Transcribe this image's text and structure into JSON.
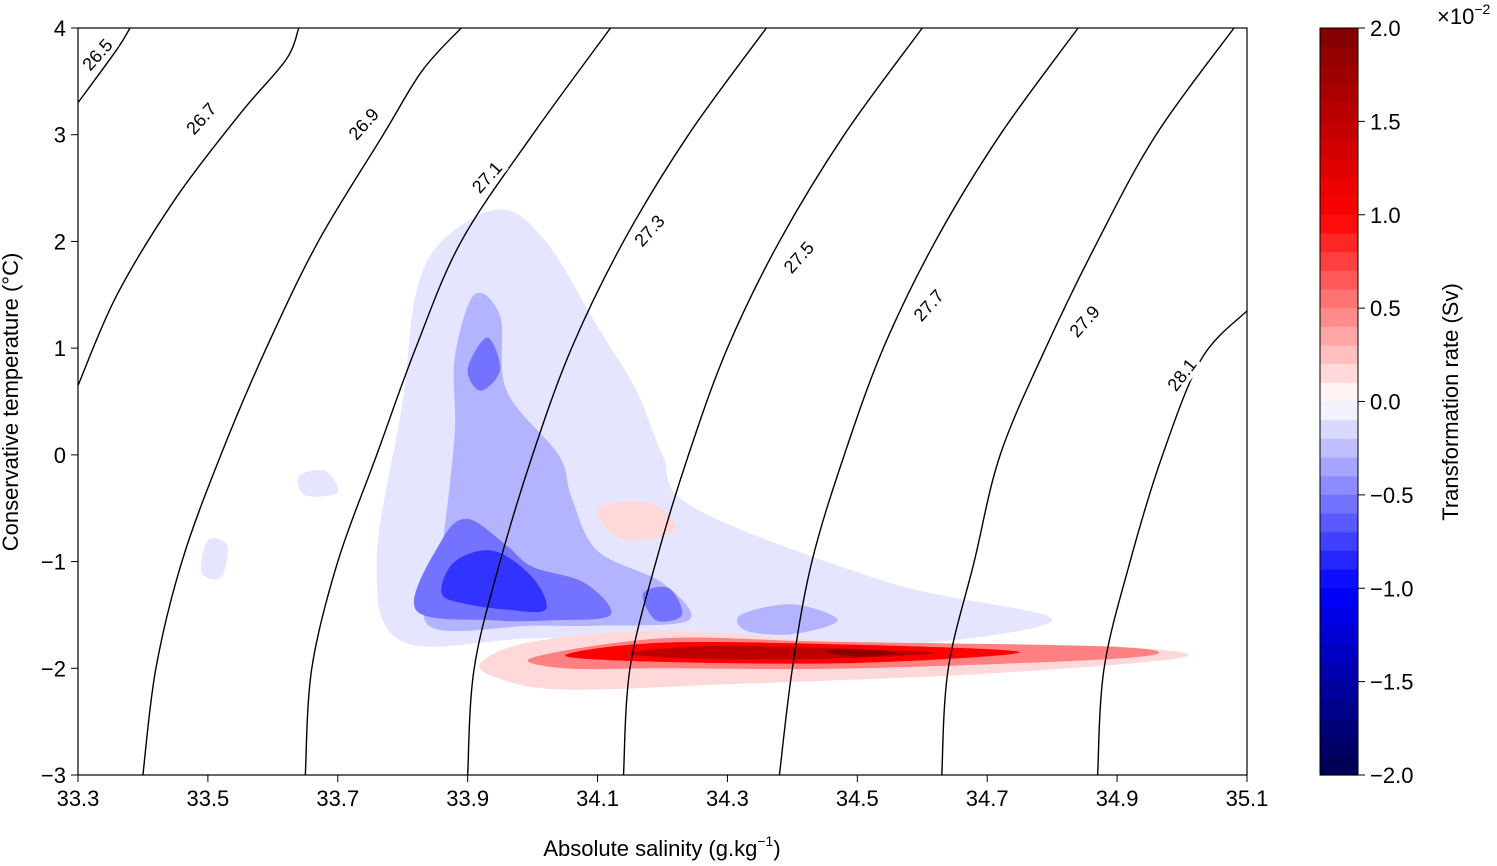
{
  "chart_data": {
    "type": "heatmap",
    "subtype": "filled-contour T-S diagram with density isopycnals",
    "xlabel": "Absolute salinity (g.kg",
    "xlabel_sup": "−1",
    "xlabel_close": ")",
    "ylabel": "Conservative temperature (°C)",
    "xlim": [
      33.3,
      35.1
    ],
    "ylim": [
      -3,
      4
    ],
    "x_ticks": [
      33.3,
      33.5,
      33.7,
      33.9,
      34.1,
      34.3,
      34.5,
      34.7,
      34.9,
      35.1
    ],
    "x_tick_labels": [
      "33.3",
      "33.5",
      "33.7",
      "33.9",
      "34.1",
      "34.3",
      "34.5",
      "34.7",
      "34.9",
      "35.1"
    ],
    "y_ticks": [
      -3,
      -2,
      -1,
      0,
      1,
      2,
      3,
      4
    ],
    "y_tick_labels": [
      "−3",
      "−2",
      "−1",
      "0",
      "1",
      "2",
      "3",
      "4"
    ],
    "isopycnals": [
      {
        "label": "26.5",
        "points": [
          [
            33.3,
            3.3
          ],
          [
            33.36,
            3.8
          ],
          [
            33.38,
            4.0
          ]
        ],
        "label_at": [
          33.33,
          3.75
        ],
        "label_angle": -48
      },
      {
        "label": "26.7",
        "points": [
          [
            33.3,
            0.65
          ],
          [
            33.36,
            1.5
          ],
          [
            33.45,
            2.4
          ],
          [
            33.55,
            3.2
          ],
          [
            33.62,
            3.7
          ],
          [
            33.64,
            4.0
          ]
        ],
        "label_at": [
          33.49,
          3.15
        ],
        "label_angle": -48
      },
      {
        "label": "26.9",
        "points": [
          [
            33.4,
            -3.0
          ],
          [
            33.42,
            -2.0
          ],
          [
            33.46,
            -1.0
          ],
          [
            33.52,
            0.0
          ],
          [
            33.59,
            1.0
          ],
          [
            33.67,
            2.0
          ],
          [
            33.77,
            3.0
          ],
          [
            33.83,
            3.6
          ],
          [
            33.89,
            4.0
          ]
        ],
        "label_at": [
          33.74,
          3.1
        ],
        "label_angle": -48
      },
      {
        "label": "27.1",
        "points": [
          [
            33.65,
            -3.0
          ],
          [
            33.66,
            -2.0
          ],
          [
            33.7,
            -1.0
          ],
          [
            33.76,
            0.0
          ],
          [
            33.82,
            1.0
          ],
          [
            33.89,
            2.0
          ],
          [
            34.0,
            3.0
          ],
          [
            34.12,
            4.0
          ]
        ],
        "label_at": [
          33.93,
          2.6
        ],
        "label_angle": -48
      },
      {
        "label": "27.3",
        "points": [
          [
            33.9,
            -3.0
          ],
          [
            33.91,
            -2.0
          ],
          [
            33.95,
            -1.0
          ],
          [
            34.0,
            0.0
          ],
          [
            34.06,
            1.0
          ],
          [
            34.14,
            2.0
          ],
          [
            34.24,
            3.0
          ],
          [
            34.36,
            4.0
          ]
        ],
        "label_at": [
          34.18,
          2.1
        ],
        "label_angle": -48
      },
      {
        "label": "27.5",
        "points": [
          [
            34.14,
            -3.0
          ],
          [
            34.15,
            -2.0
          ],
          [
            34.19,
            -1.0
          ],
          [
            34.24,
            0.0
          ],
          [
            34.3,
            1.0
          ],
          [
            34.38,
            2.0
          ],
          [
            34.48,
            3.0
          ],
          [
            34.6,
            4.0
          ]
        ],
        "label_at": [
          34.41,
          1.85
        ],
        "label_angle": -48
      },
      {
        "label": "27.7",
        "points": [
          [
            34.38,
            -3.0
          ],
          [
            34.4,
            -2.0
          ],
          [
            34.43,
            -1.0
          ],
          [
            34.48,
            0.0
          ],
          [
            34.54,
            1.0
          ],
          [
            34.62,
            2.0
          ],
          [
            34.72,
            3.0
          ],
          [
            34.84,
            4.0
          ]
        ],
        "label_at": [
          34.61,
          1.4
        ],
        "label_angle": -48
      },
      {
        "label": "27.9",
        "points": [
          [
            34.63,
            -3.0
          ],
          [
            34.64,
            -2.0
          ],
          [
            34.68,
            -1.0
          ],
          [
            34.72,
            0.0
          ],
          [
            34.79,
            1.0
          ],
          [
            34.87,
            2.0
          ],
          [
            34.96,
            3.0
          ],
          [
            35.08,
            4.0
          ]
        ],
        "label_at": [
          34.85,
          1.25
        ],
        "label_angle": -48
      },
      {
        "label": "28.1",
        "points": [
          [
            34.87,
            -3.0
          ],
          [
            34.88,
            -2.0
          ],
          [
            34.92,
            -1.0
          ],
          [
            34.97,
            0.0
          ],
          [
            35.03,
            0.9
          ],
          [
            35.1,
            1.35
          ]
        ],
        "label_at": [
          35.0,
          0.75
        ],
        "label_angle": -52
      }
    ],
    "blobs": [
      {
        "value": -0.1,
        "points": [
          [
            33.8,
            -1.75
          ],
          [
            33.76,
            -1.0
          ],
          [
            33.8,
            0.5
          ],
          [
            33.82,
            1.5
          ],
          [
            33.86,
            2.0
          ],
          [
            33.95,
            2.3
          ],
          [
            34.02,
            2.0
          ],
          [
            34.1,
            1.2
          ],
          [
            34.16,
            0.6
          ],
          [
            34.2,
            0.0
          ],
          [
            34.25,
            -0.5
          ],
          [
            34.55,
            -1.2
          ],
          [
            34.8,
            -1.55
          ],
          [
            34.52,
            -1.8
          ],
          [
            34.2,
            -1.72
          ],
          [
            34.0,
            -1.72
          ]
        ]
      },
      {
        "value": -0.1,
        "points": [
          [
            33.5,
            -0.8
          ],
          [
            33.53,
            -0.85
          ],
          [
            33.52,
            -1.15
          ],
          [
            33.49,
            -1.1
          ]
        ]
      },
      {
        "value": -0.1,
        "points": [
          [
            33.64,
            -0.2
          ],
          [
            33.68,
            -0.15
          ],
          [
            33.7,
            -0.35
          ],
          [
            33.65,
            -0.38
          ]
        ]
      },
      {
        "value": -0.3,
        "points": [
          [
            33.84,
            -1.6
          ],
          [
            33.86,
            -0.9
          ],
          [
            33.88,
            0.2
          ],
          [
            33.88,
            0.9
          ],
          [
            33.91,
            1.5
          ],
          [
            33.95,
            1.3
          ],
          [
            33.96,
            0.6
          ],
          [
            34.04,
            0.0
          ],
          [
            34.06,
            -0.4
          ],
          [
            34.1,
            -0.9
          ],
          [
            34.2,
            -1.2
          ],
          [
            34.24,
            -1.55
          ],
          [
            34.1,
            -1.6
          ],
          [
            34.0,
            -1.6
          ]
        ]
      },
      {
        "value": -0.3,
        "points": [
          [
            34.32,
            -1.5
          ],
          [
            34.4,
            -1.4
          ],
          [
            34.47,
            -1.55
          ],
          [
            34.4,
            -1.68
          ],
          [
            34.33,
            -1.65
          ]
        ]
      },
      {
        "value": -0.55,
        "points": [
          [
            33.82,
            -1.45
          ],
          [
            33.86,
            -0.8
          ],
          [
            33.9,
            -0.6
          ],
          [
            33.96,
            -0.85
          ],
          [
            34.0,
            -1.05
          ],
          [
            34.08,
            -1.2
          ],
          [
            34.12,
            -1.5
          ],
          [
            34.03,
            -1.55
          ],
          [
            33.94,
            -1.55
          ]
        ]
      },
      {
        "value": -0.55,
        "points": [
          [
            33.9,
            0.8
          ],
          [
            33.93,
            1.1
          ],
          [
            33.95,
            0.8
          ],
          [
            33.92,
            0.6
          ]
        ]
      },
      {
        "value": -0.55,
        "points": [
          [
            34.17,
            -1.3
          ],
          [
            34.21,
            -1.25
          ],
          [
            34.23,
            -1.5
          ],
          [
            34.19,
            -1.55
          ]
        ]
      },
      {
        "value": -0.8,
        "points": [
          [
            33.86,
            -1.3
          ],
          [
            33.88,
            -1.0
          ],
          [
            33.94,
            -0.9
          ],
          [
            34.0,
            -1.15
          ],
          [
            34.02,
            -1.45
          ],
          [
            33.96,
            -1.45
          ],
          [
            33.9,
            -1.4
          ]
        ]
      },
      {
        "value": 0.15,
        "points": [
          [
            33.92,
            -1.95
          ],
          [
            34.0,
            -1.75
          ],
          [
            34.2,
            -1.65
          ],
          [
            34.5,
            -1.75
          ],
          [
            34.9,
            -1.8
          ],
          [
            35.0,
            -1.9
          ],
          [
            34.7,
            -2.05
          ],
          [
            34.3,
            -2.15
          ],
          [
            34.05,
            -2.2
          ],
          [
            33.95,
            -2.1
          ]
        ]
      },
      {
        "value": 0.15,
        "points": [
          [
            34.1,
            -0.5
          ],
          [
            34.18,
            -0.45
          ],
          [
            34.22,
            -0.7
          ],
          [
            34.14,
            -0.8
          ]
        ]
      },
      {
        "value": 0.5,
        "points": [
          [
            34.0,
            -1.9
          ],
          [
            34.2,
            -1.72
          ],
          [
            34.45,
            -1.75
          ],
          [
            34.9,
            -1.8
          ],
          [
            34.92,
            -1.9
          ],
          [
            34.5,
            -2.0
          ],
          [
            34.2,
            -2.0
          ],
          [
            34.05,
            -2.0
          ]
        ]
      },
      {
        "value": 1.0,
        "points": [
          [
            34.05,
            -1.88
          ],
          [
            34.2,
            -1.76
          ],
          [
            34.5,
            -1.78
          ],
          [
            34.75,
            -1.85
          ],
          [
            34.5,
            -1.95
          ],
          [
            34.2,
            -1.94
          ]
        ]
      },
      {
        "value": 1.5,
        "points": [
          [
            34.15,
            -1.86
          ],
          [
            34.28,
            -1.79
          ],
          [
            34.5,
            -1.82
          ],
          [
            34.62,
            -1.86
          ],
          [
            34.45,
            -1.91
          ],
          [
            34.25,
            -1.91
          ]
        ]
      },
      {
        "value": 1.9,
        "points": [
          [
            34.45,
            -1.84
          ],
          [
            34.5,
            -1.82
          ],
          [
            34.56,
            -1.86
          ],
          [
            34.5,
            -1.89
          ]
        ]
      }
    ],
    "colorbar": {
      "label": "Transformation rate (Sv)",
      "range": [
        -2.0,
        2.0
      ],
      "ticks": [
        2.0,
        1.5,
        1.0,
        0.5,
        0.0,
        -0.5,
        -1.0,
        -1.5,
        -2.0
      ],
      "tick_labels": [
        "2.0",
        "1.5",
        "1.0",
        "0.5",
        "0.0",
        "−0.5",
        "−1.0",
        "−1.5",
        "−2.0"
      ],
      "multiplier": "×10",
      "multiplier_exp": "−2",
      "colormap": "seismic",
      "colors": {
        "low": "#00004c",
        "mid_low": "#0000ff",
        "mid": "#ffffff",
        "mid_high": "#ff0000",
        "high": "#7f0000"
      }
    },
    "grid": false,
    "legend": "colorbar-right"
  }
}
